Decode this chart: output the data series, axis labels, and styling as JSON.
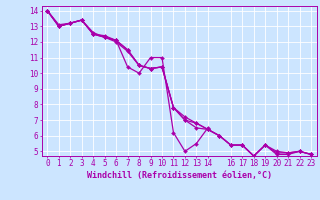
{
  "xlabel": "Windchill (Refroidissement éolien,°C)",
  "background_color": "#cce5ff",
  "line_color": "#aa00aa",
  "grid_color": "#ffffff",
  "xlim": [
    -0.5,
    23.5
  ],
  "ylim": [
    4.7,
    14.3
  ],
  "xticks": [
    0,
    1,
    2,
    3,
    4,
    5,
    6,
    7,
    8,
    9,
    10,
    11,
    12,
    13,
    14,
    16,
    17,
    18,
    19,
    20,
    21,
    22,
    23
  ],
  "yticks": [
    5,
    6,
    7,
    8,
    9,
    10,
    11,
    12,
    13,
    14
  ],
  "series": [
    [
      14.0,
      13.1,
      13.2,
      13.4,
      12.5,
      12.4,
      12.1,
      10.4,
      10.0,
      11.0,
      11.0,
      6.2,
      5.0,
      5.5,
      6.5,
      null,
      null,
      null,
      null,
      null,
      null,
      null,
      null,
      null
    ],
    [
      14.0,
      13.0,
      13.2,
      13.4,
      12.5,
      12.3,
      12.0,
      11.4,
      10.5,
      10.3,
      10.4,
      7.8,
      7.0,
      6.5,
      6.4,
      6.0,
      5.4,
      5.4,
      4.7,
      5.4,
      4.8,
      4.8,
      5.0,
      4.8
    ],
    [
      14.0,
      13.0,
      13.2,
      13.4,
      12.5,
      12.3,
      12.1,
      11.5,
      10.5,
      10.3,
      10.4,
      7.8,
      7.2,
      6.8,
      6.4,
      6.0,
      5.4,
      5.4,
      4.7,
      5.4,
      4.9,
      4.9,
      5.0,
      4.8
    ],
    [
      14.0,
      13.0,
      13.2,
      13.4,
      12.6,
      12.3,
      12.1,
      11.5,
      10.5,
      10.3,
      10.4,
      7.8,
      7.0,
      6.8,
      6.4,
      6.0,
      5.4,
      5.4,
      4.7,
      5.4,
      5.0,
      4.9,
      5.0,
      4.8
    ]
  ],
  "figsize": [
    3.2,
    2.0
  ],
  "dpi": 100,
  "tick_fontsize": 5.5,
  "xlabel_fontsize": 6,
  "marker_size": 2.0,
  "linewidth": 0.9
}
